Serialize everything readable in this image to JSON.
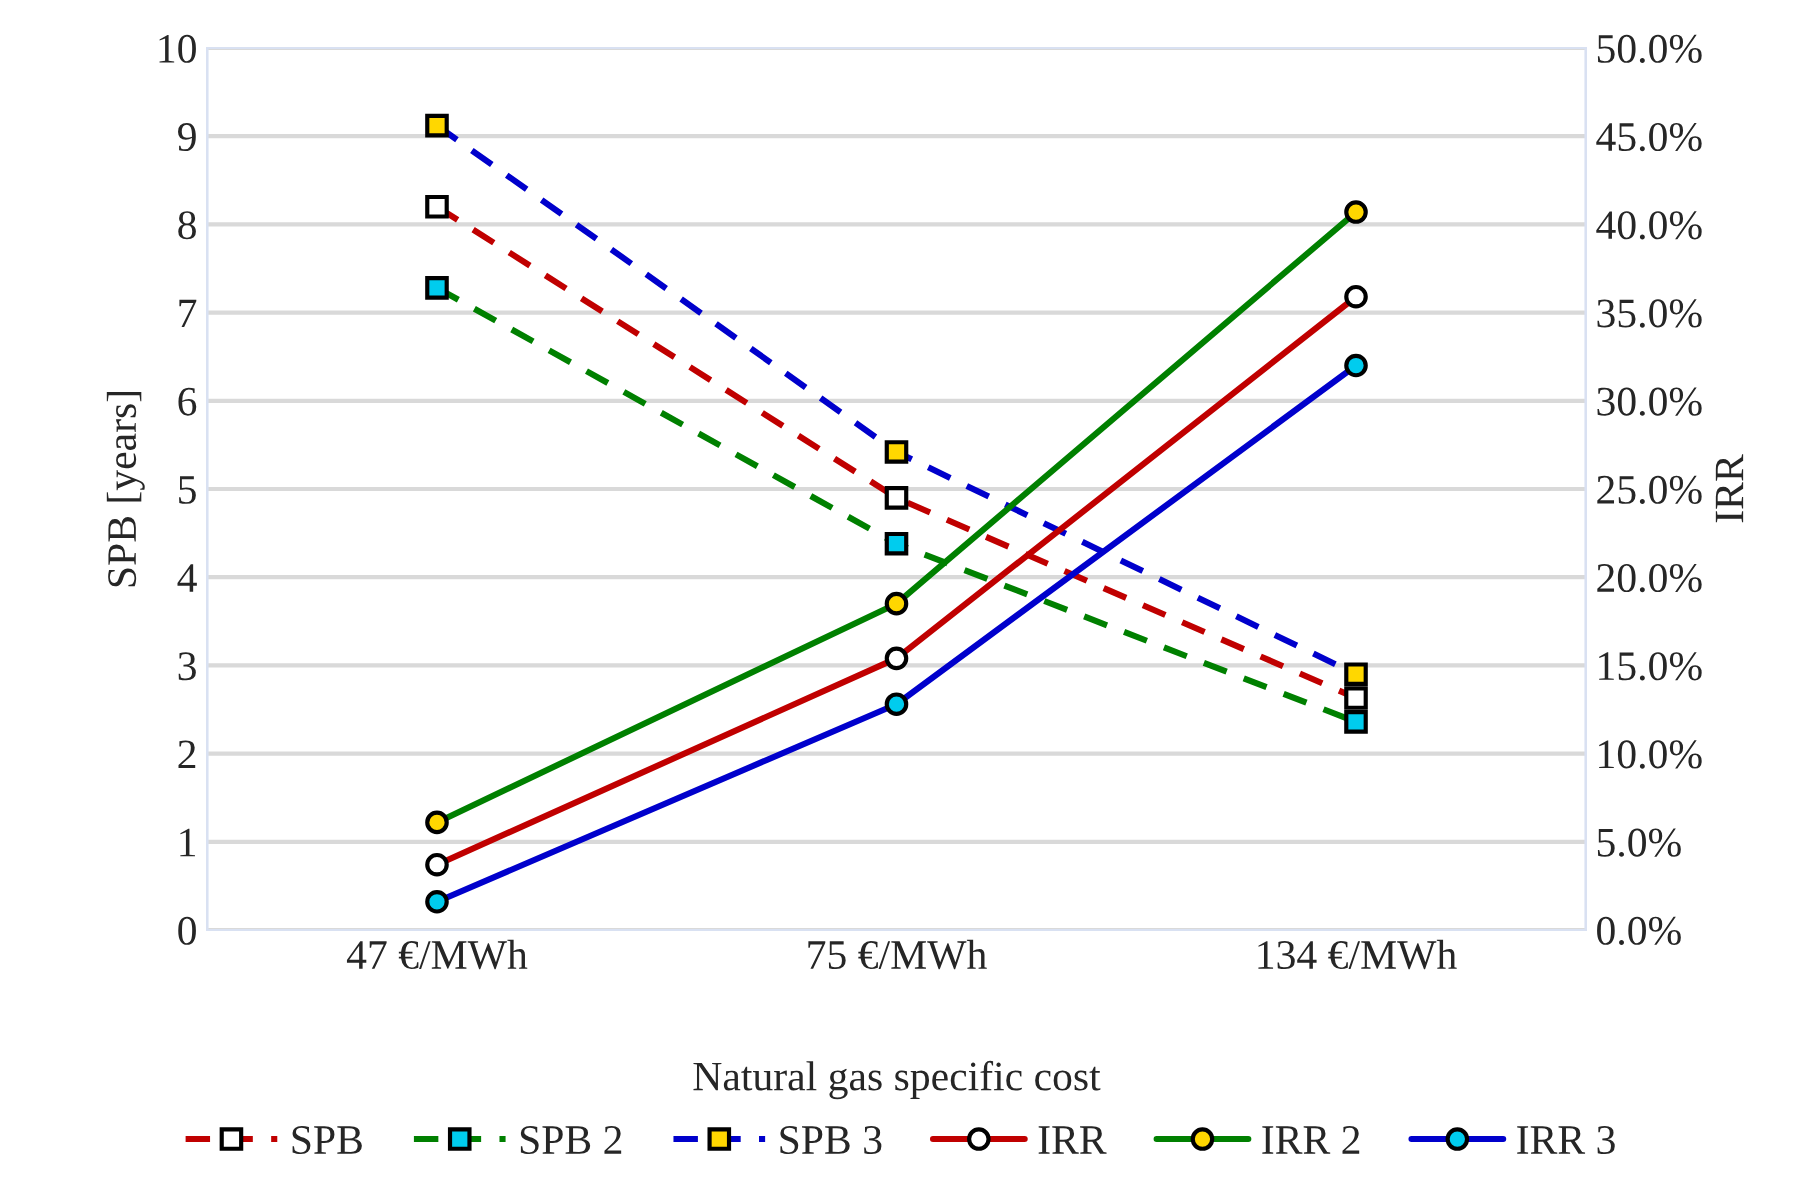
{
  "chart_data": {
    "type": "line",
    "xlabel": "Natural gas specific cost",
    "ylabel": "SPB [years]",
    "y2label": "IRR",
    "categories": [
      "47 €/MWh",
      "75 €/MWh",
      "134 €/MWh"
    ],
    "series": [
      {
        "name": "SPB",
        "color": "#c00000",
        "marker": "square",
        "line_style": "dashed",
        "values": [
          8.2,
          4.9,
          2.63
        ]
      },
      {
        "name": "SPB 2",
        "color": "#008000",
        "marker": "square",
        "line_style": "dashed",
        "values": [
          7.28,
          4.38,
          2.36
        ]
      },
      {
        "name": "SPB 3",
        "color": "#0000cc",
        "marker": "square",
        "line_style": "dashed",
        "values": [
          9.12,
          5.42,
          2.9
        ]
      },
      {
        "name": "IRR",
        "color": "#c00000",
        "marker": "circle",
        "line_style": "solid",
        "axis": "y2",
        "values": [
          3.7,
          15.4,
          35.9
        ]
      },
      {
        "name": "IRR 2",
        "color": "#008000",
        "marker": "circle",
        "line_style": "solid",
        "axis": "y2",
        "values": [
          6.1,
          18.5,
          40.7
        ]
      },
      {
        "name": "IRR 3",
        "color": "#0000cc",
        "marker": "circle",
        "line_style": "solid",
        "axis": "y2",
        "values": [
          1.6,
          12.8,
          32.0
        ]
      }
    ],
    "ylim": [
      0,
      10
    ],
    "yticks": [
      0,
      1,
      2,
      3,
      4,
      5,
      6,
      7,
      8,
      9,
      10
    ],
    "y2lim": [
      0,
      50
    ],
    "y2ticks": [
      {
        "value": 0,
        "label": "0.0%"
      },
      {
        "value": 5,
        "label": "5.0%"
      },
      {
        "value": 10,
        "label": "10.0%"
      },
      {
        "value": 15,
        "label": "15.0%"
      },
      {
        "value": 20,
        "label": "20.0%"
      },
      {
        "value": 25,
        "label": "25.0%"
      },
      {
        "value": 30,
        "label": "30.0%"
      },
      {
        "value": 35,
        "label": "35.0%"
      },
      {
        "value": 40,
        "label": "40.0%"
      },
      {
        "value": 45,
        "label": "45.0%"
      },
      {
        "value": 50,
        "label": "50.0%"
      }
    ],
    "grid": "y",
    "legend": "bottom"
  }
}
